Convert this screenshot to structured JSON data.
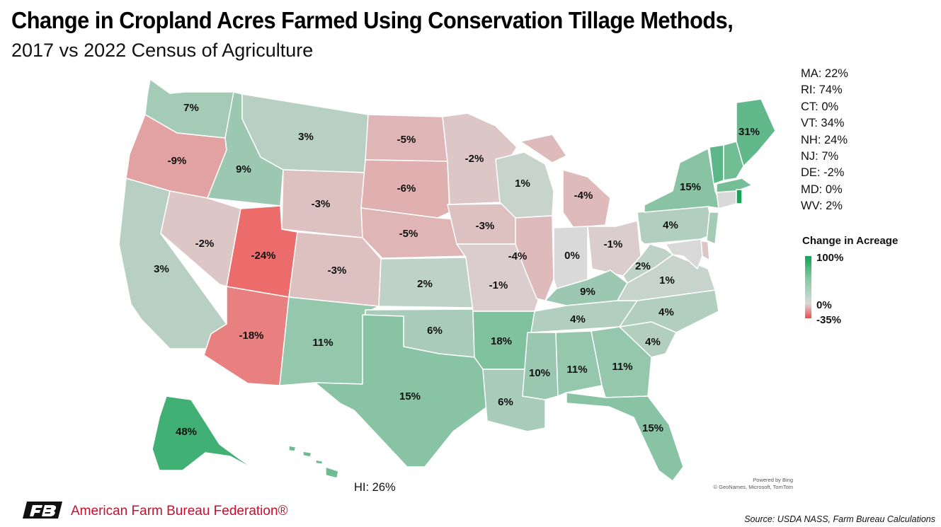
{
  "header": {
    "title": "Change in Cropland Acres Farmed Using Conservation Tillage Methods,",
    "subtitle": "2017 vs 2022 Census of Agriculture"
  },
  "states": [
    {
      "id": "WA",
      "label": "7%",
      "value": 7
    },
    {
      "id": "OR",
      "label": "-9%",
      "value": -9
    },
    {
      "id": "CA",
      "label": "3%",
      "value": 3
    },
    {
      "id": "ID",
      "label": "9%",
      "value": 9
    },
    {
      "id": "NV",
      "label": "-2%",
      "value": -2
    },
    {
      "id": "UT",
      "label": "-24%",
      "value": -24
    },
    {
      "id": "AZ",
      "label": "-18%",
      "value": -18
    },
    {
      "id": "MT",
      "label": "3%",
      "value": 3
    },
    {
      "id": "WY",
      "label": "-3%",
      "value": -3
    },
    {
      "id": "CO",
      "label": "-3%",
      "value": -3
    },
    {
      "id": "NM",
      "label": "11%",
      "value": 11
    },
    {
      "id": "ND",
      "label": "-5%",
      "value": -5
    },
    {
      "id": "SD",
      "label": "-6%",
      "value": -6
    },
    {
      "id": "NE",
      "label": "-5%",
      "value": -5
    },
    {
      "id": "KS",
      "label": "2%",
      "value": 2
    },
    {
      "id": "OK",
      "label": "6%",
      "value": 6
    },
    {
      "id": "TX",
      "label": "15%",
      "value": 15
    },
    {
      "id": "MN",
      "label": "-2%",
      "value": -2
    },
    {
      "id": "IA",
      "label": "-3%",
      "value": -3
    },
    {
      "id": "MO",
      "label": "-1%",
      "value": -1
    },
    {
      "id": "AR",
      "label": "18%",
      "value": 18
    },
    {
      "id": "LA",
      "label": "6%",
      "value": 6
    },
    {
      "id": "WI",
      "label": "1%",
      "value": 1
    },
    {
      "id": "IL",
      "label": "-4%",
      "value": -4
    },
    {
      "id": "MI",
      "label": "-4%",
      "value": -4
    },
    {
      "id": "IN",
      "label": "0%",
      "value": 0
    },
    {
      "id": "OH",
      "label": "-1%",
      "value": -1
    },
    {
      "id": "KY",
      "label": "9%",
      "value": 9
    },
    {
      "id": "TN",
      "label": "4%",
      "value": 4
    },
    {
      "id": "MS",
      "label": "10%",
      "value": 10
    },
    {
      "id": "AL",
      "label": "11%",
      "value": 11
    },
    {
      "id": "GA",
      "label": "11%",
      "value": 11
    },
    {
      "id": "FL",
      "label": "15%",
      "value": 15
    },
    {
      "id": "SC",
      "label": "4%",
      "value": 4
    },
    {
      "id": "NC",
      "label": "4%",
      "value": 4
    },
    {
      "id": "VA",
      "label": "1%",
      "value": 1
    },
    {
      "id": "WV",
      "label": "2%",
      "value": 2
    },
    {
      "id": "PA",
      "label": "4%",
      "value": 4
    },
    {
      "id": "NY",
      "label": "15%",
      "value": 15
    },
    {
      "id": "ME",
      "label": "31%",
      "value": 31
    },
    {
      "id": "AK",
      "label": "48%",
      "value": 48
    }
  ],
  "small_states": [
    "MA: 22%",
    "RI: 74%",
    "CT: 0%",
    "VT: 34%",
    "NH: 24%",
    "NJ: 7%",
    "DE: -2%",
    "MD: 0%",
    "WV: 2%"
  ],
  "small_state_values": {
    "MA": 22,
    "RI": 74,
    "CT": 0,
    "VT": 34,
    "NH": 24,
    "NJ": 7,
    "DE": -2,
    "MD": 0,
    "HI": 26
  },
  "hawaii_label": "HI: 26%",
  "legend": {
    "title": "Change in Acreage",
    "max_label": "100%",
    "mid_label": "0%",
    "min_label": "-35%",
    "max_value": 100,
    "mid_value": 0,
    "min_value": -35,
    "colors": {
      "max": "#12a356",
      "mid": "#d9d9d9",
      "min": "#f24b4b"
    }
  },
  "attribution": {
    "powered": "Powered by Bing",
    "credits": "© GeoNames, Microsoft, TomTom"
  },
  "footer": {
    "org": "American Farm Bureau Federation®",
    "logo_text": "FB",
    "source": "Source: USDA NASS, Farm Bureau Calculations"
  }
}
